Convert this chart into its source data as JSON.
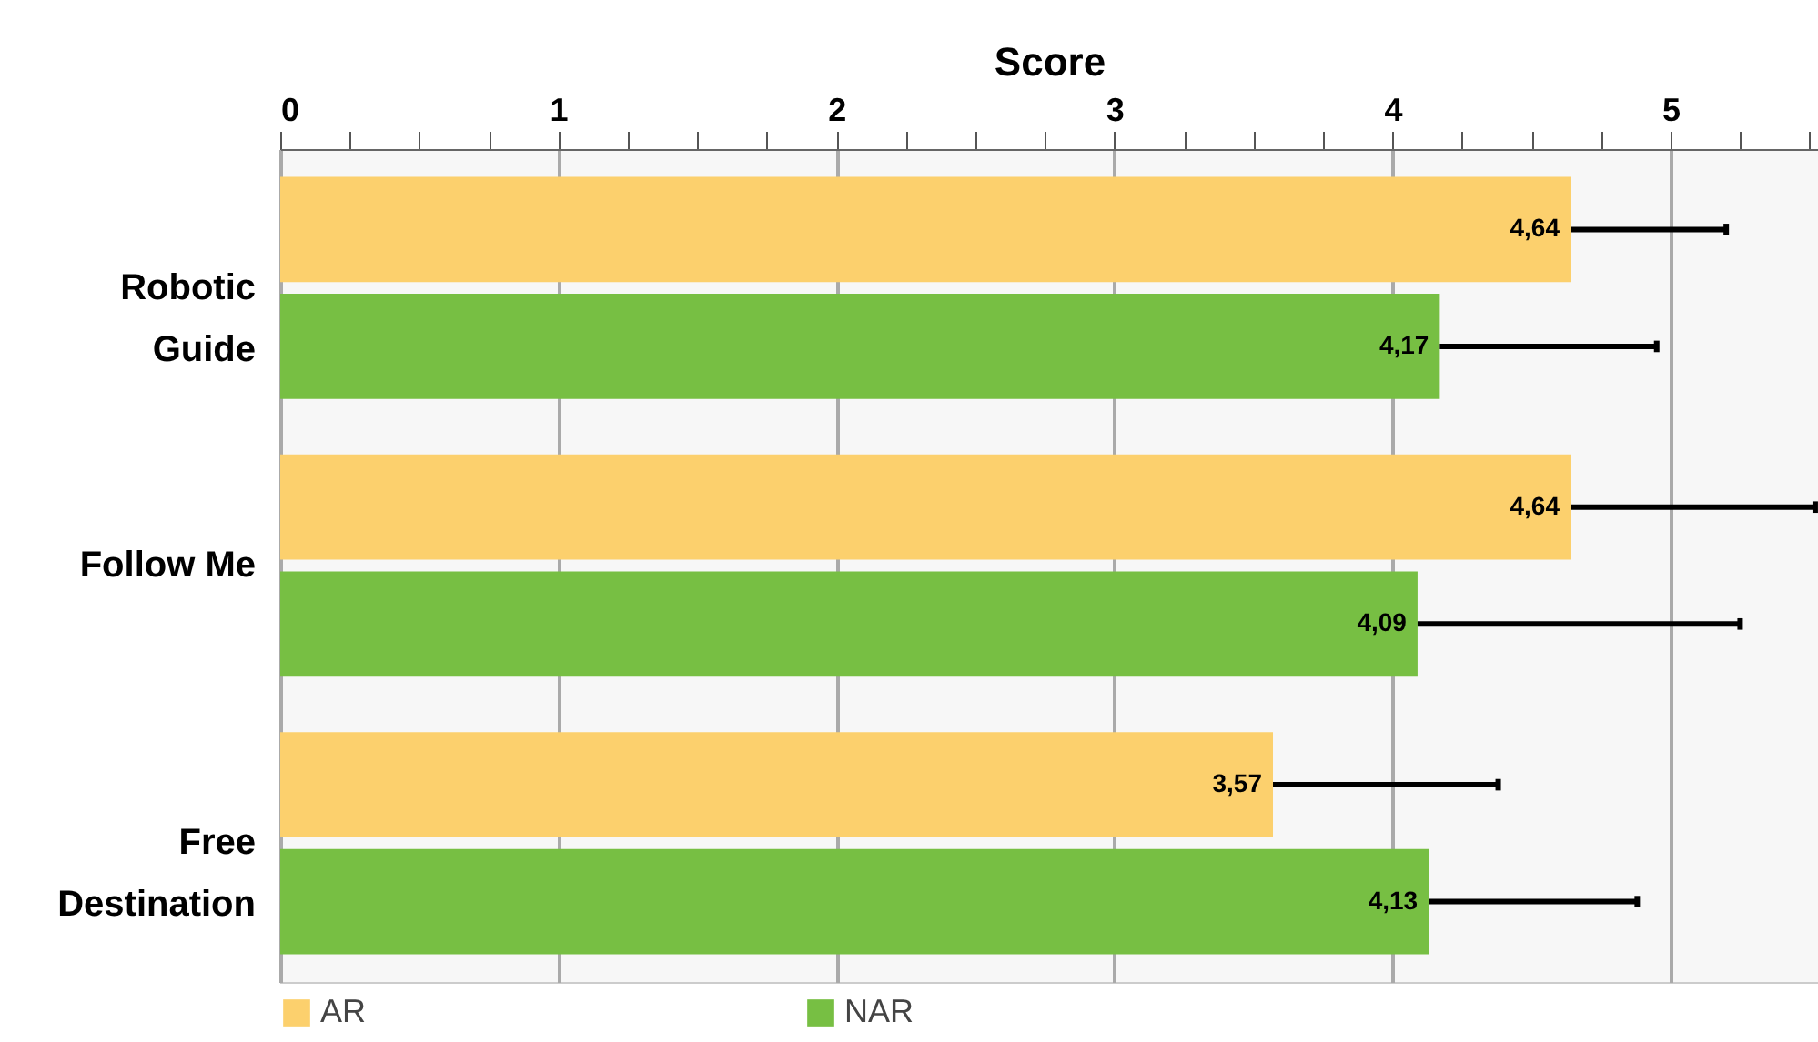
{
  "chart_data": {
    "type": "bar",
    "orientation": "horizontal",
    "xlabel": "Score",
    "categories": [
      "Robotic Guide",
      "Follow Me",
      "Free Destination"
    ],
    "series": [
      {
        "name": "AR",
        "color": "#fcd06d",
        "values": [
          4.64,
          4.64,
          3.57
        ],
        "value_labels": [
          "4,64",
          "4,64",
          "3,57"
        ],
        "errors": [
          0.56,
          0.88,
          0.81
        ]
      },
      {
        "name": "NAR",
        "color": "#77bf43",
        "values": [
          4.17,
          4.09,
          4.13
        ],
        "value_labels": [
          "4,17",
          "4,09",
          "4,13"
        ],
        "errors": [
          0.78,
          1.16,
          0.75
        ]
      }
    ],
    "xlim": [
      0,
      5.53
    ],
    "xticks": [
      0,
      {
        "value": 0.25,
        "label": null
      },
      {
        "value": 0.5,
        "label": null
      },
      {
        "value": 0.75,
        "label": null
      },
      1,
      {
        "value": 1.25,
        "label": null
      },
      {
        "value": 1.5,
        "label": null
      },
      {
        "value": 1.75,
        "label": null
      },
      2,
      {
        "value": 2.25,
        "label": null
      },
      {
        "value": 2.5,
        "label": null
      },
      {
        "value": 2.75,
        "label": null
      },
      3,
      {
        "value": 3.25,
        "label": null
      },
      {
        "value": 3.5,
        "label": null
      },
      {
        "value": 3.75,
        "label": null
      },
      4,
      {
        "value": 4.25,
        "label": null
      },
      {
        "value": 4.5,
        "label": null
      },
      {
        "value": 4.75,
        "label": null
      },
      5,
      {
        "value": 5.25,
        "label": null
      },
      {
        "value": 5.5,
        "label": null
      }
    ],
    "grid": "x",
    "legend": "bottom"
  }
}
